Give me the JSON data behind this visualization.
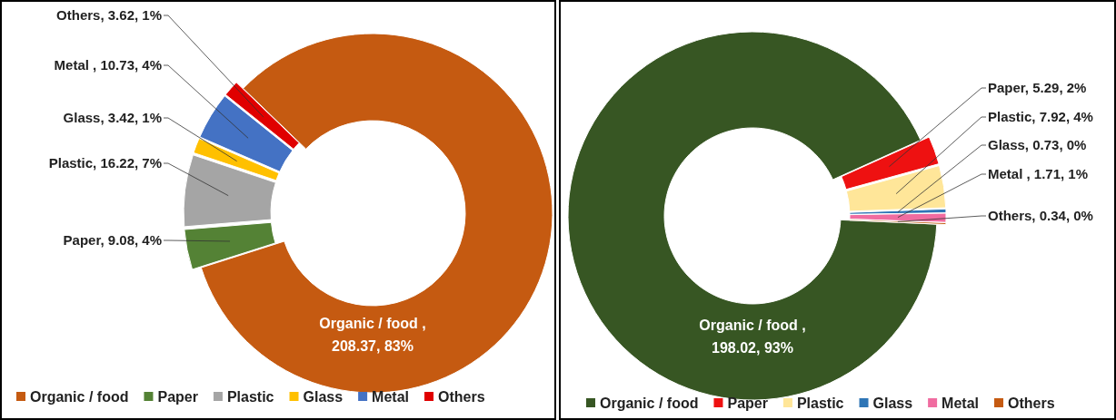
{
  "chart_data": [
    {
      "type": "donut",
      "categories": [
        "Organic / food",
        "Paper",
        "Plastic",
        "Glass",
        "Metal",
        "Others"
      ],
      "values": [
        208.37,
        9.08,
        16.22,
        3.42,
        10.73,
        3.62
      ],
      "colors": [
        "#c55a11",
        "#548235",
        "#a5a5a5",
        "#ffc000",
        "#4472c4",
        "#e00000"
      ],
      "value_labels": [
        "Organic / food , 208.37, 83%",
        "Paper, 9.08, 4%",
        "Plastic, 16.22, 7%",
        "Glass, 3.42, 1%",
        "Metal , 10.73, 4%",
        "Others, 3.62, 1%"
      ],
      "legend": "bottom"
    },
    {
      "type": "donut",
      "categories": [
        "Organic / food",
        "Paper",
        "Plastic",
        "Glass",
        "Metal",
        "Others"
      ],
      "values": [
        198.02,
        5.29,
        7.92,
        0.73,
        1.71,
        0.34
      ],
      "colors": [
        "#375623",
        "#ee1111",
        "#ffe699",
        "#2e75b6",
        "#f06ca0",
        "#c55a11"
      ],
      "value_labels": [
        "Organic / food , 198.02, 93%",
        "Paper, 5.29, 2%",
        "Plastic, 7.92, 4%",
        "Glass, 0.73, 0%",
        "Metal , 1.71, 1%",
        "Others, 0.34, 0%"
      ],
      "legend": "bottom"
    }
  ]
}
